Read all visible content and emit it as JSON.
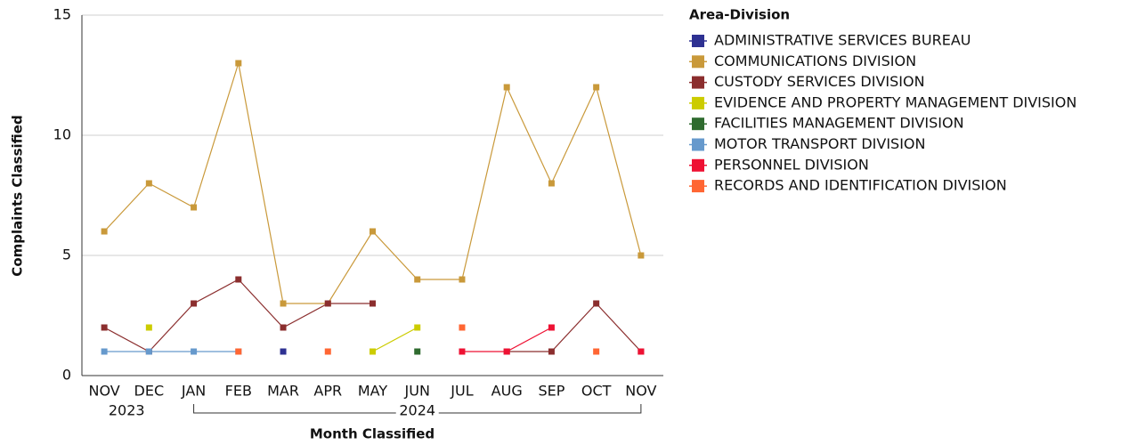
{
  "chart_data": {
    "type": "line",
    "x_label": "Month Classified",
    "y_label": "Complaints Classified",
    "categories": [
      "NOV",
      "DEC",
      "JAN",
      "FEB",
      "MAR",
      "APR",
      "MAY",
      "JUN",
      "JUL",
      "AUG",
      "SEP",
      "OCT",
      "NOV"
    ],
    "year_groups": [
      {
        "label": "2023",
        "span": 2
      },
      {
        "label": "2024",
        "span": 11
      }
    ],
    "ylim": [
      0,
      15
    ],
    "yticks": [
      0,
      5,
      10,
      15
    ],
    "grid": true,
    "legend": {
      "title": "Area-Division",
      "position": "right"
    },
    "series": [
      {
        "name": "ADMINISTRATIVE SERVICES BUREAU",
        "color": "#2e3192",
        "values": [
          null,
          null,
          null,
          null,
          1,
          null,
          null,
          null,
          null,
          null,
          null,
          null,
          null
        ]
      },
      {
        "name": "COMMUNICATIONS DIVISION",
        "color": "#c9993a",
        "values": [
          6,
          8,
          7,
          13,
          3,
          3,
          6,
          4,
          4,
          12,
          8,
          12,
          5
        ]
      },
      {
        "name": "CUSTODY SERVICES DIVISION",
        "color": "#8b2e2e",
        "values": [
          2,
          1,
          3,
          4,
          2,
          3,
          3,
          null,
          null,
          1,
          1,
          3,
          1
        ]
      },
      {
        "name": "EVIDENCE AND PROPERTY MANAGEMENT DIVISION",
        "color": "#cccc00",
        "values": [
          null,
          2,
          null,
          null,
          null,
          null,
          1,
          2,
          null,
          null,
          null,
          null,
          null
        ]
      },
      {
        "name": "FACILITIES MANAGEMENT DIVISION",
        "color": "#2f6b2f",
        "values": [
          null,
          null,
          null,
          null,
          null,
          null,
          null,
          1,
          null,
          null,
          null,
          null,
          null
        ]
      },
      {
        "name": "MOTOR TRANSPORT DIVISION",
        "color": "#6699cc",
        "values": [
          1,
          1,
          1,
          1,
          null,
          null,
          null,
          null,
          null,
          null,
          null,
          null,
          null
        ]
      },
      {
        "name": "PERSONNEL DIVISION",
        "color": "#ee1133",
        "values": [
          null,
          null,
          null,
          null,
          null,
          null,
          null,
          null,
          1,
          1,
          2,
          null,
          1
        ]
      },
      {
        "name": "RECORDS AND IDENTIFICATION DIVISION",
        "color": "#ff6633",
        "values": [
          null,
          null,
          null,
          1,
          null,
          1,
          null,
          null,
          2,
          null,
          null,
          1,
          null
        ]
      }
    ]
  }
}
